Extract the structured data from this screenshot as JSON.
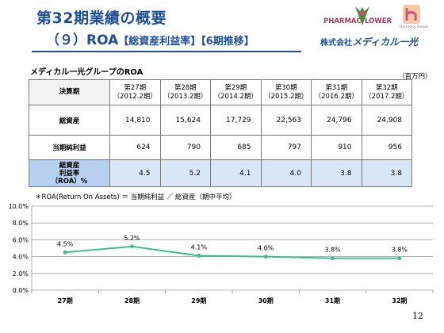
{
  "header": {
    "title_line1": "第32期業績の概要",
    "title_line2_main": "（９）ROA",
    "title_line2_sub": "【総資産利益率】【6期推移】"
  },
  "logos": {
    "pharmac": "PHARMAC",
    "lower": "LOWER",
    "harmony": "Harmony House",
    "company_prefix": "株式会社",
    "company_name": "メディカル一光"
  },
  "table": {
    "group_title": "メディカル一光グループのROA",
    "unit": "（百万円）",
    "header_label": "決算期",
    "periods": [
      {
        "label": "第27期",
        "sub": "（2012.2期）"
      },
      {
        "label": "第28期",
        "sub": "（2013.2期）"
      },
      {
        "label": "第29期",
        "sub": "（2014.2期）"
      },
      {
        "label": "第30期",
        "sub": "（2015.2期）"
      },
      {
        "label": "第31期",
        "sub": "（2016.2期）"
      },
      {
        "label": "第32期",
        "sub": "（2017.2期）"
      }
    ],
    "rows": [
      {
        "label": "総資産",
        "values": [
          "14,810",
          "15,624",
          "17,729",
          "22,563",
          "24,796",
          "24,908"
        ]
      },
      {
        "label": "当期純利益",
        "values": [
          "624",
          "790",
          "685",
          "797",
          "910",
          "956"
        ]
      },
      {
        "label_lines": [
          "総資産",
          "利益率",
          "（ROA）%"
        ],
        "values": [
          "4.5",
          "5.2",
          "4.1",
          "4.0",
          "3.8",
          "3.8"
        ]
      }
    ]
  },
  "note": "＊ROA(Return On Assets) ＝ 当期純利益 ／ 総資産（期中平均）",
  "chart_data": {
    "type": "line",
    "categories": [
      "27期",
      "28期",
      "29期",
      "30期",
      "31期",
      "32期"
    ],
    "series": [
      {
        "values": [
          4.5,
          5.2,
          4.1,
          4.0,
          3.8,
          3.8
        ],
        "labels": [
          "4.5%",
          "5.2%",
          "4.1%",
          "4.0%",
          "3.8%",
          "3.8%"
        ],
        "color": "#3fbf8f"
      }
    ],
    "yticks": [
      "0.0%",
      "2.0%",
      "4.0%",
      "6.0%",
      "8.0%",
      "10.0%"
    ],
    "ylim": [
      0,
      10
    ],
    "grid": true,
    "legend": "none"
  },
  "page_number": "12"
}
